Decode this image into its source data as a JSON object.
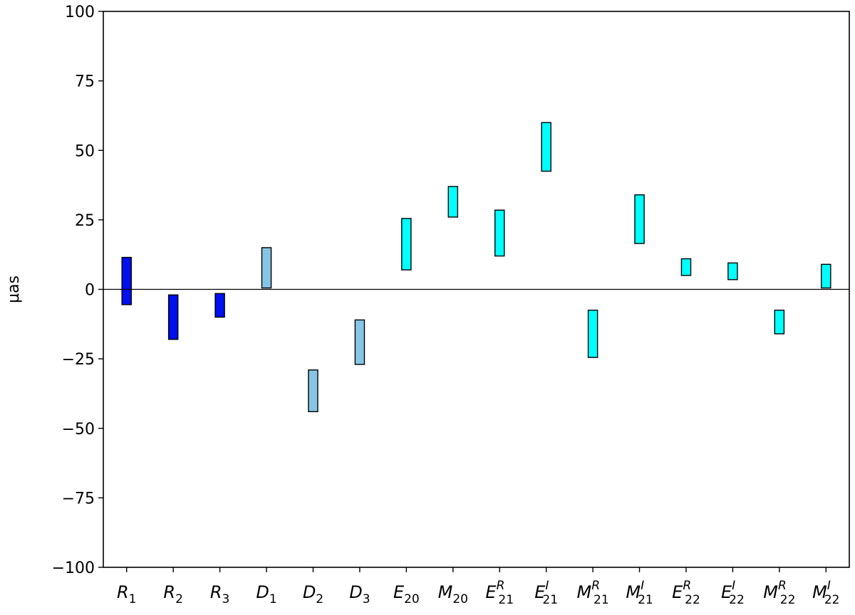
{
  "chart_data": {
    "type": "bar",
    "title": "",
    "xlabel": "",
    "ylabel": "μas",
    "ylim": [
      -100,
      100
    ],
    "yticks": [
      100,
      75,
      50,
      25,
      0,
      -25,
      -50,
      -75,
      -100
    ],
    "ytick_labels": [
      "100",
      "75",
      "50",
      "25",
      "0",
      "−25",
      "−50",
      "−75",
      "−100"
    ],
    "grid": false,
    "zero_line": true,
    "categories": [
      {
        "base": "R",
        "sub": "1",
        "sup": ""
      },
      {
        "base": "R",
        "sub": "2",
        "sup": ""
      },
      {
        "base": "R",
        "sub": "3",
        "sup": ""
      },
      {
        "base": "D",
        "sub": "1",
        "sup": ""
      },
      {
        "base": "D",
        "sub": "2",
        "sup": ""
      },
      {
        "base": "D",
        "sub": "3",
        "sup": ""
      },
      {
        "base": "E",
        "sub": "20",
        "sup": ""
      },
      {
        "base": "M",
        "sub": "20",
        "sup": ""
      },
      {
        "base": "E",
        "sub": "21",
        "sup": "R"
      },
      {
        "base": "E",
        "sub": "21",
        "sup": "I"
      },
      {
        "base": "M",
        "sub": "21",
        "sup": "R"
      },
      {
        "base": "M",
        "sub": "21",
        "sup": "I"
      },
      {
        "base": "E",
        "sub": "22",
        "sup": "R"
      },
      {
        "base": "E",
        "sub": "22",
        "sup": "I"
      },
      {
        "base": "M",
        "sub": "22",
        "sup": "R"
      },
      {
        "base": "M",
        "sub": "22",
        "sup": "I"
      }
    ],
    "ranges": [
      [
        -5.5,
        11.5
      ],
      [
        -18,
        -2
      ],
      [
        -10,
        -1.5
      ],
      [
        0.5,
        15
      ],
      [
        -44,
        -29
      ],
      [
        -27,
        -11
      ],
      [
        7,
        25.5
      ],
      [
        26,
        37
      ],
      [
        12,
        28.5
      ],
      [
        42.5,
        60
      ],
      [
        -24.5,
        -7.5
      ],
      [
        16.5,
        34
      ],
      [
        5,
        11
      ],
      [
        3.5,
        9.5
      ],
      [
        -16,
        -7.5
      ],
      [
        0.5,
        9
      ]
    ],
    "colors": [
      "#0010ee",
      "#0010ee",
      "#0010ee",
      "#87c5e6",
      "#87c5e6",
      "#87c5e6",
      "#00ffff",
      "#00ffff",
      "#00ffff",
      "#00ffff",
      "#00ffff",
      "#00ffff",
      "#00ffff",
      "#00ffff",
      "#00ffff",
      "#00ffff"
    ]
  }
}
